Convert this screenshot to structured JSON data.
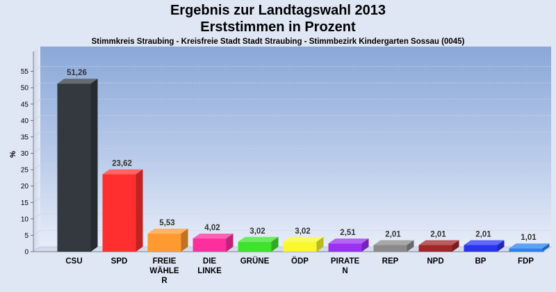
{
  "chart_data": {
    "type": "bar",
    "title": "Ergebnis zur Landtagswahl 2013",
    "title2": "Erststimmen in Prozent",
    "subtitle": "Stimmkreis Straubing - Kreisfreie Stadt Stadt Straubing - Stimmbezirk Kindergarten Sossau (0045)",
    "ylabel": "%",
    "xlabel": "",
    "ylim": [
      0,
      60
    ],
    "yticks": [
      0,
      5,
      10,
      15,
      20,
      25,
      30,
      35,
      40,
      45,
      50,
      55
    ],
    "grid": true,
    "categories": [
      "CSU",
      "SPD",
      "FREIE WÄHLER",
      "DIE LINKE",
      "GRÜNE",
      "ÖDP",
      "PIRATEN",
      "REP",
      "NPD",
      "BP",
      "FDP"
    ],
    "category_lines": [
      [
        "CSU"
      ],
      [
        "SPD"
      ],
      [
        "FREIE",
        "WÄHLE",
        "R"
      ],
      [
        "DIE",
        "LINKE"
      ],
      [
        "GRÜNE"
      ],
      [
        "ÖDP"
      ],
      [
        "PIRATE",
        "N"
      ],
      [
        "REP"
      ],
      [
        "NPD"
      ],
      [
        "BP"
      ],
      [
        "FDP"
      ]
    ],
    "values": [
      51.26,
      23.62,
      5.53,
      4.02,
      3.02,
      3.02,
      2.51,
      2.01,
      2.01,
      2.01,
      1.01
    ],
    "value_labels": [
      "51,26",
      "23,62",
      "5,53",
      "4,02",
      "3,02",
      "3,02",
      "2,51",
      "2,01",
      "2,01",
      "2,01",
      "1,01"
    ],
    "colors": [
      "#34383f",
      "#ff2f2f",
      "#ff9a30",
      "#ff2e9e",
      "#3ee32c",
      "#f8f82a",
      "#9a30f0",
      "#8a8a8a",
      "#a02628",
      "#2a34f0",
      "#2a82f0"
    ]
  }
}
